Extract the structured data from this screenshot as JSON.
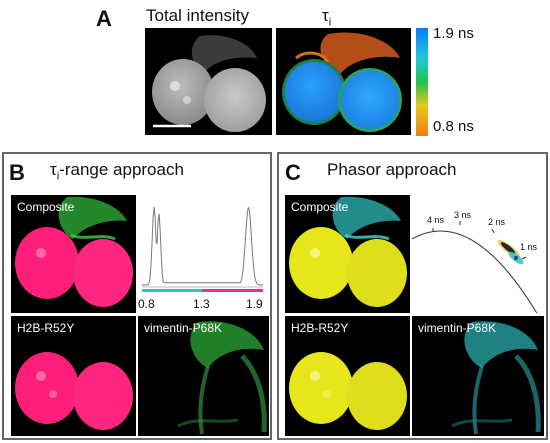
{
  "panel_a": {
    "letter": "A",
    "title_intensity": "Total intensity",
    "title_tau_symbol": "τ",
    "title_tau_sub": "i",
    "colorbar": {
      "max_label": "1.9 ns",
      "min_label": "0.8 ns",
      "colors": [
        "#0a7cff",
        "#1fc9d6",
        "#22c24a",
        "#e8c81e",
        "#f07a10"
      ]
    }
  },
  "panel_b": {
    "letter": "B",
    "title_tau_symbol": "τ",
    "title_tau_sub": "i",
    "title_rest": "-range approach",
    "composite_label": "Composite",
    "h2b_label": "H2B-R52Y",
    "vimentin_label": "vimentin-P68K",
    "histogram": {
      "tick_labels": [
        "0.8",
        "1.3",
        "1.9"
      ],
      "bar_colors": [
        "#2bc9a8",
        "#e03590"
      ]
    }
  },
  "panel_c": {
    "letter": "C",
    "title": "Phasor approach",
    "composite_label": "Composite",
    "h2b_label": "H2B-R52Y",
    "vimentin_label": "vimentin-P68K",
    "phasor_labels": [
      "4 ns",
      "3 ns",
      "2 ns",
      "1 ns"
    ]
  },
  "colors": {
    "magenta": "#ff1f7a",
    "yellow": "#e6e61a",
    "green": "#2fb53a",
    "cyan": "#30c6c8"
  }
}
